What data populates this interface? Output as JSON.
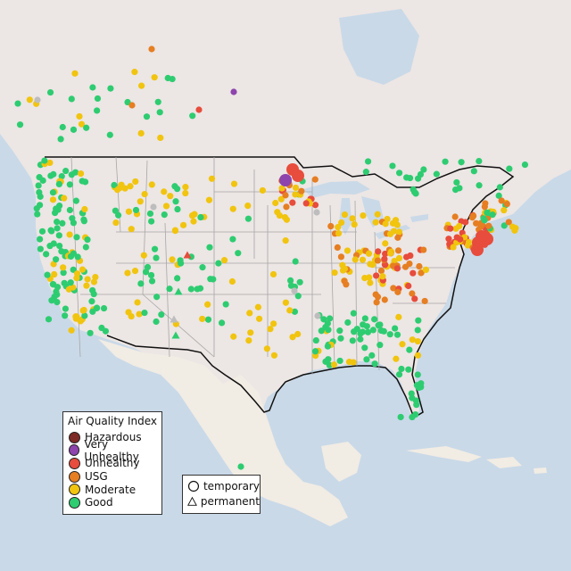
{
  "map": {
    "colors": {
      "ocean": "#c9d9e8",
      "land": "#ece6e4",
      "mexico": "#f1ece4",
      "border": "#111111",
      "state_lines": "#a7a7a7",
      "hazardous": "#7e2a26",
      "very_unhealthy": "#8e44ad",
      "unhealthy": "#e74c3c",
      "usg": "#e67e22",
      "moderate": "#f1c40f",
      "good": "#2ecc71",
      "no_data": "#bdbdbd"
    }
  },
  "legend": {
    "title": "Air Quality Index",
    "items": [
      {
        "label": "Hazardous",
        "color": "#7e2a26"
      },
      {
        "label": "Very Unhealthy",
        "color": "#8e44ad"
      },
      {
        "label": "Unhealthy",
        "color": "#e74c3c"
      },
      {
        "label": "USG",
        "color": "#e67e22"
      },
      {
        "label": "Moderate",
        "color": "#f1c40f"
      },
      {
        "label": "Good",
        "color": "#2ecc71"
      }
    ]
  },
  "monitor_types": {
    "temporary": "temporary",
    "permanent": "permanent"
  }
}
